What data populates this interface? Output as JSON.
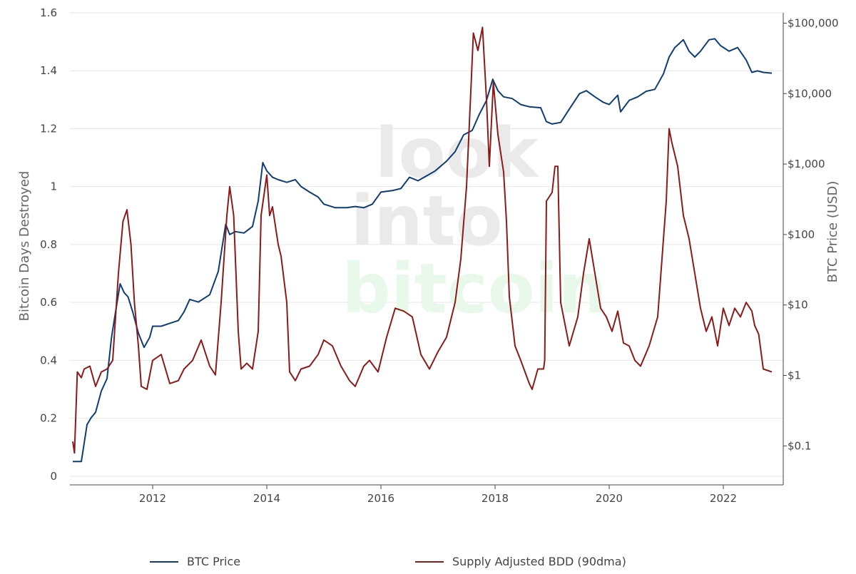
{
  "chart_data": {
    "type": "line",
    "title": "",
    "watermark": [
      "look",
      "into",
      "bitcoin"
    ],
    "x_axis": {
      "range": [
        2010.55,
        2023.05
      ],
      "tick_values": [
        2012,
        2014,
        2016,
        2018,
        2020,
        2022
      ],
      "tick_labels": [
        "2012",
        "2014",
        "2016",
        "2018",
        "2020",
        "2022"
      ]
    },
    "y_left": {
      "label": "Bitcoin Days Destroyed",
      "range": [
        -0.03,
        1.6
      ],
      "tick_values": [
        0,
        0.2,
        0.4,
        0.6,
        0.8,
        1,
        1.2,
        1.4,
        1.6
      ],
      "tick_labels": [
        "0",
        "0.2",
        "0.4",
        "0.6",
        "0.8",
        "1",
        "1.2",
        "1.4",
        "1.6"
      ],
      "grid": true
    },
    "y_right": {
      "label": "BTC Price (USD)",
      "scale": "log",
      "range": [
        0.028,
        140000
      ],
      "tick_values": [
        0.1,
        1,
        10,
        100,
        1000,
        10000,
        100000
      ],
      "tick_labels": [
        "$0.1",
        "$1",
        "$10",
        "$100",
        "$1,000",
        "$10,000",
        "$100,000"
      ]
    },
    "legend_position": "bottom",
    "series": [
      {
        "name": "BTC Price",
        "axis": "right",
        "color": "#0e3d75",
        "x": [
          2010.6,
          2010.75,
          2010.85,
          2010.92,
          2011.0,
          2011.1,
          2011.2,
          2011.28,
          2011.35,
          2011.43,
          2011.5,
          2011.57,
          2011.65,
          2011.75,
          2011.85,
          2011.95,
          2012.0,
          2012.15,
          2012.3,
          2012.45,
          2012.55,
          2012.65,
          2012.8,
          2013.0,
          2013.15,
          2013.28,
          2013.35,
          2013.45,
          2013.6,
          2013.75,
          2013.85,
          2013.93,
          2014.0,
          2014.1,
          2014.2,
          2014.35,
          2014.5,
          2014.6,
          2014.75,
          2014.9,
          2015.0,
          2015.2,
          2015.4,
          2015.55,
          2015.7,
          2015.85,
          2016.0,
          2016.2,
          2016.35,
          2016.5,
          2016.65,
          2016.8,
          2016.95,
          2017.15,
          2017.3,
          2017.45,
          2017.6,
          2017.72,
          2017.85,
          2017.96,
          2018.05,
          2018.15,
          2018.3,
          2018.45,
          2018.6,
          2018.8,
          2018.9,
          2019.0,
          2019.15,
          2019.3,
          2019.48,
          2019.6,
          2019.75,
          2019.9,
          2020.0,
          2020.15,
          2020.2,
          2020.35,
          2020.5,
          2020.65,
          2020.8,
          2020.95,
          2021.05,
          2021.15,
          2021.3,
          2021.4,
          2021.5,
          2021.6,
          2021.75,
          2021.85,
          2021.95,
          2022.1,
          2022.25,
          2022.4,
          2022.5,
          2022.6,
          2022.7,
          2022.85
        ],
        "values": [
          0.06,
          0.06,
          0.2,
          0.25,
          0.3,
          0.6,
          0.9,
          3.5,
          8,
          20,
          15,
          13,
          8,
          4,
          2.5,
          3.5,
          5,
          5,
          5.5,
          6,
          8,
          12,
          11,
          14,
          30,
          140,
          100,
          110,
          105,
          130,
          300,
          1050,
          800,
          650,
          600,
          550,
          600,
          480,
          400,
          340,
          270,
          240,
          240,
          250,
          240,
          270,
          400,
          420,
          450,
          650,
          580,
          680,
          800,
          1100,
          1500,
          2600,
          3000,
          5000,
          8000,
          16000,
          11000,
          9000,
          8500,
          7000,
          6500,
          6300,
          4000,
          3700,
          3900,
          6000,
          10000,
          11000,
          9000,
          7500,
          7000,
          9500,
          5500,
          8000,
          9000,
          10800,
          11500,
          19000,
          33000,
          45000,
          58000,
          40000,
          33000,
          40000,
          58000,
          60000,
          48000,
          40000,
          45000,
          30000,
          20000,
          21000,
          20000,
          19500
        ]
      },
      {
        "name": "Supply Adjusted BDD (90dma)",
        "axis": "left",
        "color": "#8b1a1a",
        "x": [
          2010.6,
          2010.63,
          2010.68,
          2010.75,
          2010.8,
          2010.9,
          2011.0,
          2011.1,
          2011.2,
          2011.3,
          2011.4,
          2011.48,
          2011.55,
          2011.62,
          2011.68,
          2011.75,
          2011.8,
          2011.9,
          2012.0,
          2012.15,
          2012.3,
          2012.45,
          2012.55,
          2012.7,
          2012.85,
          2013.0,
          2013.1,
          2013.2,
          2013.3,
          2013.35,
          2013.42,
          2013.5,
          2013.55,
          2013.65,
          2013.75,
          2013.85,
          2013.9,
          2014.0,
          2014.05,
          2014.1,
          2014.2,
          2014.25,
          2014.35,
          2014.4,
          2014.5,
          2014.6,
          2014.75,
          2014.9,
          2015.0,
          2015.15,
          2015.3,
          2015.45,
          2015.55,
          2015.7,
          2015.8,
          2015.95,
          2016.1,
          2016.25,
          2016.4,
          2016.55,
          2016.7,
          2016.85,
          2017.0,
          2017.15,
          2017.3,
          2017.4,
          2017.5,
          2017.58,
          2017.62,
          2017.7,
          2017.78,
          2017.85,
          2017.9,
          2017.97,
          2018.05,
          2018.15,
          2018.2,
          2018.25,
          2018.35,
          2018.45,
          2018.6,
          2018.65,
          2018.75,
          2018.85,
          2018.87,
          2018.9,
          2019.0,
          2019.05,
          2019.1,
          2019.15,
          2019.2,
          2019.3,
          2019.45,
          2019.55,
          2019.65,
          2019.75,
          2019.85,
          2019.95,
          2020.05,
          2020.15,
          2020.25,
          2020.35,
          2020.45,
          2020.55,
          2020.7,
          2020.85,
          2021.0,
          2021.05,
          2021.1,
          2021.2,
          2021.3,
          2021.4,
          2021.5,
          2021.6,
          2021.7,
          2021.8,
          2021.9,
          2022.0,
          2022.1,
          2022.2,
          2022.3,
          2022.4,
          2022.5,
          2022.55,
          2022.62,
          2022.7,
          2022.85
        ],
        "values": [
          0.12,
          0.08,
          0.36,
          0.34,
          0.37,
          0.38,
          0.31,
          0.36,
          0.37,
          0.4,
          0.7,
          0.88,
          0.92,
          0.8,
          0.6,
          0.45,
          0.31,
          0.3,
          0.4,
          0.42,
          0.32,
          0.33,
          0.37,
          0.4,
          0.47,
          0.38,
          0.35,
          0.6,
          0.9,
          1.0,
          0.9,
          0.5,
          0.37,
          0.39,
          0.37,
          0.5,
          0.9,
          1.04,
          0.9,
          0.93,
          0.8,
          0.76,
          0.6,
          0.36,
          0.33,
          0.37,
          0.38,
          0.42,
          0.47,
          0.45,
          0.38,
          0.33,
          0.31,
          0.38,
          0.4,
          0.36,
          0.48,
          0.58,
          0.57,
          0.55,
          0.42,
          0.37,
          0.43,
          0.48,
          0.6,
          0.75,
          1.0,
          1.35,
          1.53,
          1.47,
          1.55,
          1.3,
          1.07,
          1.36,
          1.18,
          1.05,
          0.88,
          0.62,
          0.45,
          0.4,
          0.32,
          0.3,
          0.37,
          0.37,
          0.4,
          0.95,
          0.98,
          1.07,
          1.07,
          0.6,
          0.55,
          0.45,
          0.55,
          0.7,
          0.82,
          0.7,
          0.58,
          0.55,
          0.5,
          0.57,
          0.46,
          0.45,
          0.4,
          0.38,
          0.45,
          0.55,
          0.95,
          1.2,
          1.15,
          1.07,
          0.9,
          0.82,
          0.7,
          0.58,
          0.5,
          0.55,
          0.45,
          0.58,
          0.52,
          0.58,
          0.55,
          0.6,
          0.57,
          0.52,
          0.49,
          0.37,
          0.36
        ]
      }
    ]
  }
}
